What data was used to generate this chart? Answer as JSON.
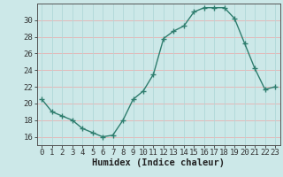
{
  "x": [
    0,
    1,
    2,
    3,
    4,
    5,
    6,
    7,
    8,
    9,
    10,
    11,
    12,
    13,
    14,
    15,
    16,
    17,
    18,
    19,
    20,
    21,
    22,
    23
  ],
  "y": [
    20.5,
    19.0,
    18.5,
    18.0,
    17.0,
    16.5,
    16.0,
    16.2,
    18.0,
    20.5,
    21.5,
    23.5,
    27.8,
    28.7,
    29.3,
    31.0,
    31.5,
    31.5,
    31.5,
    30.2,
    27.2,
    24.2,
    21.7,
    22.0
  ],
  "line_color": "#2e7d6e",
  "marker": "+",
  "marker_size": 4,
  "bg_color": "#cce8e8",
  "grid_color_h": "#e8b0b0",
  "grid_color_v": "#b0d8d8",
  "xlabel": "Humidex (Indice chaleur)",
  "xlim": [
    -0.5,
    23.5
  ],
  "ylim": [
    15.0,
    32.0
  ],
  "yticks": [
    16,
    18,
    20,
    22,
    24,
    26,
    28,
    30
  ],
  "xticks": [
    0,
    1,
    2,
    3,
    4,
    5,
    6,
    7,
    8,
    9,
    10,
    11,
    12,
    13,
    14,
    15,
    16,
    17,
    18,
    19,
    20,
    21,
    22,
    23
  ],
  "xlabel_fontsize": 7.5,
  "tick_fontsize": 6.5,
  "line_width": 1.0
}
